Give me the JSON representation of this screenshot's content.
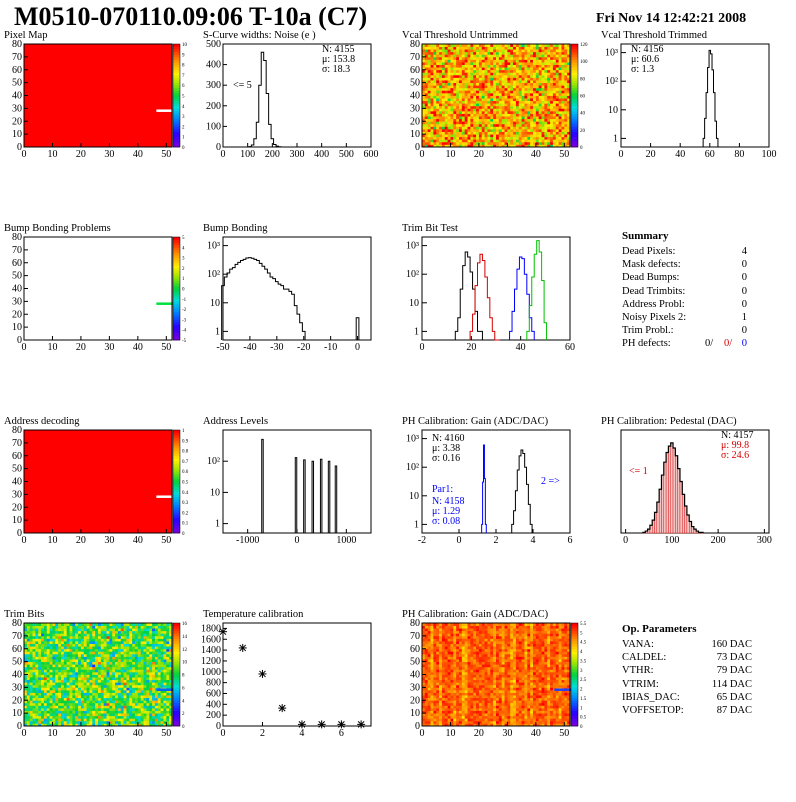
{
  "header": {
    "title": "M0510-070110.09:06 T-10a (C7)",
    "date": "Fri Nov 14 12:42:21 2008"
  },
  "colors": {
    "hist": "#000000",
    "red": "#d40000",
    "green": "#00c000",
    "blue": "#0000ff",
    "map_red": "#ff0000"
  },
  "chart_data": [
    {
      "id": "pixel-map",
      "type": "heatmap",
      "title": "Pixel Map",
      "xlim": [
        0,
        52
      ],
      "ylim": [
        0,
        80
      ],
      "xticks": [
        "0",
        "10",
        "20",
        "30",
        "40",
        "50"
      ],
      "yticks": [
        "0",
        "10",
        "20",
        "30",
        "40",
        "50",
        "60",
        "70",
        "80"
      ],
      "zlim": [
        0,
        10
      ],
      "zticks": [
        "0",
        "1",
        "2",
        "3",
        "4",
        "5",
        "6",
        "7",
        "8",
        "9",
        "10"
      ],
      "fill_value": 10,
      "markers": [
        {
          "x": 49.5,
          "y": 28,
          "value": 0
        }
      ]
    },
    {
      "id": "scurve",
      "type": "line",
      "title": "S-Curve widths: Noise (e )",
      "xlim": [
        0,
        600
      ],
      "ylim": [
        0,
        500
      ],
      "xticks": [
        "0",
        "100",
        "200",
        "300",
        "400",
        "500",
        "600"
      ],
      "yticks": [
        "0",
        "100",
        "200",
        "300",
        "400",
        "500"
      ],
      "x": [
        100,
        110,
        120,
        130,
        140,
        150,
        160,
        170,
        180,
        190,
        200,
        210,
        220,
        230,
        240,
        250
      ],
      "values": [
        0,
        2,
        10,
        40,
        120,
        300,
        460,
        420,
        260,
        110,
        40,
        12,
        4,
        1,
        0,
        0
      ],
      "stats": {
        "N": "N: 4155",
        "mu": "μ: 153.8",
        "sigma": "σ: 18.3"
      },
      "annotation": "<= 5"
    },
    {
      "id": "vcal-untrimmed",
      "type": "heatmap",
      "title": "Vcal Threshold Untrimmed",
      "xlim": [
        0,
        52
      ],
      "ylim": [
        0,
        80
      ],
      "xticks": [
        "0",
        "10",
        "20",
        "30",
        "40",
        "50"
      ],
      "yticks": [
        "0",
        "10",
        "20",
        "30",
        "40",
        "50",
        "60",
        "70",
        "80"
      ],
      "zlim": [
        0,
        120
      ],
      "zticks": [
        "0",
        "20",
        "40",
        "60",
        "80",
        "100",
        "120"
      ],
      "mean_value": 95,
      "spread": 22
    },
    {
      "id": "vcal-trimmed",
      "type": "line",
      "title": "Vcal Threshold Trimmed",
      "xlim": [
        0,
        100
      ],
      "log_y": true,
      "ylim": [
        0.5,
        2000
      ],
      "xticks": [
        "0",
        "20",
        "40",
        "60",
        "80",
        "100"
      ],
      "yticks": [
        "1",
        "10",
        "10²",
        "10³"
      ],
      "x": [
        56,
        57,
        58,
        59,
        60,
        61,
        62,
        63,
        64,
        65
      ],
      "values": [
        1,
        5,
        40,
        300,
        1200,
        900,
        250,
        40,
        4,
        1
      ],
      "stats": {
        "N": "N: 4156",
        "mu": "μ: 60.6",
        "sigma": "σ:  1.3"
      }
    },
    {
      "id": "bump-problems",
      "type": "heatmap",
      "title": "Bump Bonding Problems",
      "xlim": [
        0,
        52
      ],
      "ylim": [
        0,
        80
      ],
      "xticks": [
        "0",
        "10",
        "20",
        "30",
        "40",
        "50"
      ],
      "yticks": [
        "0",
        "10",
        "20",
        "30",
        "40",
        "50",
        "60",
        "70",
        "80"
      ],
      "zlim": [
        -5,
        5
      ],
      "zticks": [
        "-5",
        "-4",
        "-3",
        "-2",
        "-1",
        "0",
        "1",
        "2",
        "3",
        "4",
        "5"
      ],
      "fill_value": null,
      "markers": [
        {
          "x": 49.5,
          "y": 28,
          "value": 1
        }
      ]
    },
    {
      "id": "bump-bonding",
      "type": "line",
      "title": "Bump Bonding",
      "xlim": [
        -50,
        5
      ],
      "log_y": true,
      "ylim": [
        0.5,
        2000
      ],
      "xticks": [
        "-50",
        "-40",
        "-30",
        "-20",
        "-10",
        "0"
      ],
      "yticks": [
        "1",
        "10",
        "10²",
        "10³"
      ],
      "x": [
        -50,
        -49,
        -48,
        -47,
        -46,
        -45,
        -44,
        -43,
        -42,
        -41,
        -40,
        -39,
        -38,
        -37,
        -36,
        -35,
        -34,
        -33,
        -32,
        -31,
        -30,
        -29,
        -28,
        -27,
        -26,
        -25,
        -24,
        -23,
        -22,
        -21,
        -20,
        -19,
        -18,
        -17,
        -16,
        -15,
        -14,
        -13,
        -12,
        -11,
        -10,
        -9,
        -8,
        -7,
        -6,
        -5,
        -4,
        -3,
        -2,
        -1,
        0,
        1
      ],
      "values": [
        40,
        80,
        110,
        150,
        170,
        220,
        260,
        300,
        330,
        370,
        380,
        360,
        330,
        300,
        240,
        190,
        150,
        110,
        80,
        70,
        55,
        45,
        40,
        30,
        30,
        25,
        20,
        8,
        4,
        2,
        1,
        0,
        0,
        0,
        0,
        0,
        0,
        0,
        0,
        0,
        0,
        0,
        0,
        0,
        0,
        0,
        0,
        0,
        0,
        0,
        3,
        0
      ]
    },
    {
      "id": "trim-bit-test",
      "type": "line",
      "title": "Trim Bit Test",
      "xlim": [
        0,
        60
      ],
      "log_y": true,
      "ylim": [
        0.5,
        2000
      ],
      "xticks": [
        "0",
        "20",
        "40",
        "60"
      ],
      "yticks": [
        "1",
        "10",
        "10²",
        "10³"
      ],
      "series": [
        {
          "color": "black",
          "x": [
            14,
            15,
            16,
            17,
            18,
            19,
            20,
            21,
            22,
            23,
            24,
            25
          ],
          "values": [
            1,
            3,
            30,
            200,
            600,
            400,
            120,
            30,
            5,
            1,
            1,
            0
          ]
        },
        {
          "color": "red",
          "x": [
            20,
            21,
            22,
            23,
            24,
            25,
            26,
            27,
            28,
            29,
            30,
            31
          ],
          "values": [
            1,
            4,
            40,
            250,
            500,
            300,
            80,
            15,
            3,
            1,
            0,
            0
          ]
        },
        {
          "color": "blue",
          "x": [
            36,
            37,
            38,
            39,
            40,
            41,
            42,
            43,
            44,
            45
          ],
          "values": [
            1,
            5,
            30,
            150,
            400,
            350,
            100,
            20,
            3,
            1
          ]
        },
        {
          "color": "green",
          "x": [
            43,
            44,
            45,
            46,
            47,
            48,
            49,
            50
          ],
          "values": [
            1,
            8,
            80,
            500,
            1500,
            600,
            60,
            2
          ]
        }
      ]
    },
    {
      "id": "address-decoding",
      "type": "heatmap",
      "title": "Address decoding",
      "xlim": [
        0,
        52
      ],
      "ylim": [
        0,
        80
      ],
      "xticks": [
        "0",
        "10",
        "20",
        "30",
        "40",
        "50"
      ],
      "yticks": [
        "0",
        "10",
        "20",
        "30",
        "40",
        "50",
        "60",
        "70",
        "80"
      ],
      "zlim": [
        0,
        1
      ],
      "zticks": [
        "0",
        "0.1",
        "0.2",
        "0.3",
        "0.4",
        "0.5",
        "0.6",
        "0.7",
        "0.8",
        "0.9",
        "1"
      ],
      "fill_value": 1,
      "markers": [
        {
          "x": 49.5,
          "y": 28,
          "value": 0
        }
      ]
    },
    {
      "id": "address-levels",
      "type": "line",
      "title": "Address Levels",
      "xlim": [
        -1500,
        1500
      ],
      "log_y": true,
      "ylim": [
        0.5,
        1000
      ],
      "xticks": [
        "-1000",
        "0",
        "1000"
      ],
      "yticks": [
        "1",
        "10",
        "10²"
      ],
      "peaks": [
        {
          "x": -700,
          "h": 500
        },
        {
          "x": -20,
          "h": 130
        },
        {
          "x": 150,
          "h": 110
        },
        {
          "x": 320,
          "h": 100
        },
        {
          "x": 490,
          "h": 115
        },
        {
          "x": 650,
          "h": 100
        },
        {
          "x": 790,
          "h": 70
        }
      ]
    },
    {
      "id": "ph-gain",
      "type": "line",
      "title": "PH Calibration: Gain (ADC/DAC)",
      "xlim": [
        -2,
        6
      ],
      "log_y": true,
      "ylim": [
        0.5,
        2000
      ],
      "xticks": [
        "-2",
        "0",
        "2",
        "4",
        "6"
      ],
      "yticks": [
        "1",
        "10",
        "10²",
        "10³"
      ],
      "series": [
        {
          "color": "black",
          "x": [
            2.9,
            3.0,
            3.1,
            3.2,
            3.3,
            3.4,
            3.5,
            3.6,
            3.7,
            3.8,
            3.9,
            4.0
          ],
          "values": [
            1,
            3,
            15,
            80,
            250,
            400,
            300,
            100,
            25,
            5,
            1,
            0
          ]
        },
        {
          "color": "blue",
          "x": [
            1.25,
            1.3,
            1.35,
            1.4,
            1.45
          ],
          "values": [
            1,
            30,
            600,
            40,
            1
          ]
        }
      ],
      "stats": {
        "N": "N: 4160",
        "mu": "μ: 3.38",
        "sigma": "σ: 0.16"
      },
      "par": {
        "label": "Par1:",
        "N": "N: 4158",
        "mu": "μ: 1.29",
        "sigma": "σ: 0.08"
      },
      "annotation": "2 =>"
    },
    {
      "id": "ph-pedestal",
      "type": "bar",
      "title": "PH Calibration: Pedestal (DAC)",
      "xlim": [
        -10,
        310
      ],
      "ylim": [
        0,
        160
      ],
      "xticks": [
        "0",
        "100",
        "200",
        "300"
      ],
      "x": [
        40,
        45,
        50,
        55,
        60,
        65,
        70,
        75,
        80,
        85,
        90,
        95,
        100,
        105,
        110,
        115,
        120,
        125,
        130,
        135,
        140,
        145,
        150,
        155,
        160,
        165
      ],
      "values": [
        1,
        3,
        6,
        12,
        20,
        32,
        48,
        68,
        90,
        110,
        125,
        135,
        140,
        132,
        120,
        100,
        80,
        60,
        42,
        28,
        18,
        10,
        6,
        3,
        1,
        1
      ],
      "stats": {
        "N": "N: 4157",
        "mu": "μ: 99.8",
        "sigma": "σ: 24.6"
      },
      "annotation": "<= 1"
    },
    {
      "id": "trim-bits",
      "type": "heatmap",
      "title": "Trim Bits",
      "xlim": [
        0,
        52
      ],
      "ylim": [
        0,
        80
      ],
      "xticks": [
        "0",
        "10",
        "20",
        "30",
        "40",
        "50"
      ],
      "yticks": [
        "0",
        "10",
        "20",
        "30",
        "40",
        "50",
        "60",
        "70",
        "80"
      ],
      "zlim": [
        0,
        16
      ],
      "zticks": [
        "0",
        "2",
        "4",
        "6",
        "8",
        "10",
        "12",
        "14",
        "16"
      ],
      "mean_value": 9,
      "spread": 3
    },
    {
      "id": "temperature",
      "type": "scatter",
      "title": "Temperature calibration",
      "xlim": [
        0,
        7.5
      ],
      "ylim": [
        0,
        1900
      ],
      "xticks": [
        "0",
        "2",
        "4",
        "6"
      ],
      "yticks": [
        "0",
        "200",
        "400",
        "600",
        "800",
        "1000",
        "1200",
        "1400",
        "1600",
        "1800"
      ],
      "x": [
        0,
        1,
        2,
        3,
        4,
        5,
        6,
        7
      ],
      "values": [
        1740,
        1440,
        960,
        330,
        30,
        30,
        30,
        30
      ]
    },
    {
      "id": "ph-gain-map",
      "type": "heatmap",
      "title": "PH Calibration: Gain (ADC/DAC)",
      "xlim": [
        0,
        52
      ],
      "ylim": [
        0,
        80
      ],
      "xticks": [
        "0",
        "10",
        "20",
        "30",
        "40",
        "50"
      ],
      "yticks": [
        "0",
        "10",
        "20",
        "30",
        "40",
        "50",
        "60",
        "70",
        "80"
      ],
      "zlim": [
        0,
        5.5
      ],
      "zticks": [
        "0",
        "0.5",
        "1",
        "1.5",
        "2",
        "2.5",
        "3",
        "3.5",
        "4",
        "4.5",
        "5",
        "5.5"
      ],
      "mean_value": 5.0,
      "spread": 0.35
    }
  ],
  "summary": {
    "title": "Summary",
    "rows": [
      {
        "label": "Dead Pixels:",
        "value": "4"
      },
      {
        "label": "Mask defects:",
        "value": "0"
      },
      {
        "label": "Dead Bumps:",
        "value": "0"
      },
      {
        "label": "Dead Trimbits:",
        "value": "0"
      },
      {
        "label": "Address Probl:",
        "value": "0"
      },
      {
        "label": "Noisy Pixels 2:",
        "value": "1"
      },
      {
        "label": "Trim Probl.:",
        "value": "0"
      }
    ],
    "ph_label": "PH defects:",
    "ph_values": [
      "0/",
      "0/",
      "0"
    ]
  },
  "op_params": {
    "title": "Op. Parameters",
    "rows": [
      {
        "label": "VANA:",
        "value": "160 DAC"
      },
      {
        "label": "CALDEL:",
        "value": "73 DAC"
      },
      {
        "label": "VTHR:",
        "value": "79 DAC"
      },
      {
        "label": "VTRIM:",
        "value": "114 DAC"
      },
      {
        "label": "IBIAS_DAC:",
        "value": "65 DAC"
      },
      {
        "label": "VOFFSETOP:",
        "value": "87 DAC"
      }
    ]
  }
}
